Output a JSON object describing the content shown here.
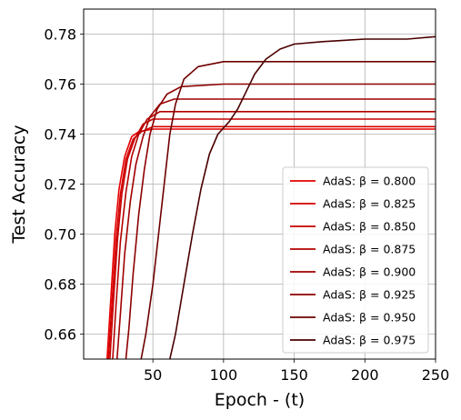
{
  "chart_data": {
    "type": "line",
    "xlabel": "Epoch - (t)",
    "ylabel": "Test Accuracy",
    "xlim": [
      1,
      250
    ],
    "ylim": [
      0.65,
      0.79
    ],
    "x_ticks": [
      50,
      100,
      150,
      200,
      250
    ],
    "y_ticks": [
      0.66,
      0.68,
      0.7,
      0.72,
      0.74,
      0.76,
      0.78
    ],
    "x_tick_labels": [
      "50",
      "100",
      "150",
      "200",
      "250"
    ],
    "y_tick_labels": [
      "0.66",
      "0.68",
      "0.70",
      "0.72",
      "0.74",
      "0.76",
      "0.78"
    ],
    "grid": true,
    "legend_position": "lower-right",
    "series": [
      {
        "name": "AdaS: β = 0.800",
        "color": "#e60000",
        "points": [
          [
            17,
            0.645
          ],
          [
            20,
            0.672
          ],
          [
            23,
            0.7
          ],
          [
            26,
            0.718
          ],
          [
            30,
            0.731
          ],
          [
            35,
            0.739
          ],
          [
            40,
            0.741
          ],
          [
            50,
            0.742
          ],
          [
            75,
            0.742
          ],
          [
            100,
            0.742
          ],
          [
            150,
            0.742
          ],
          [
            200,
            0.742
          ],
          [
            250,
            0.742
          ]
        ]
      },
      {
        "name": "AdaS: β = 0.825",
        "color": "#d40000",
        "points": [
          [
            18,
            0.645
          ],
          [
            21,
            0.672
          ],
          [
            24,
            0.698
          ],
          [
            27,
            0.716
          ],
          [
            31,
            0.73
          ],
          [
            36,
            0.738
          ],
          [
            42,
            0.741
          ],
          [
            50,
            0.743
          ],
          [
            75,
            0.743
          ],
          [
            100,
            0.743
          ],
          [
            150,
            0.743
          ],
          [
            200,
            0.743
          ],
          [
            250,
            0.743
          ]
        ]
      },
      {
        "name": "AdaS: β = 0.850",
        "color": "#c80000",
        "points": [
          [
            19,
            0.645
          ],
          [
            22,
            0.672
          ],
          [
            25,
            0.698
          ],
          [
            28,
            0.716
          ],
          [
            32,
            0.73
          ],
          [
            37,
            0.738
          ],
          [
            43,
            0.744
          ],
          [
            50,
            0.746
          ],
          [
            75,
            0.746
          ],
          [
            100,
            0.746
          ],
          [
            150,
            0.746
          ],
          [
            200,
            0.746
          ],
          [
            250,
            0.746
          ]
        ]
      },
      {
        "name": "AdaS: β = 0.875",
        "color": "#b40000",
        "points": [
          [
            21,
            0.645
          ],
          [
            24,
            0.672
          ],
          [
            27,
            0.697
          ],
          [
            31,
            0.717
          ],
          [
            35,
            0.731
          ],
          [
            40,
            0.74
          ],
          [
            46,
            0.746
          ],
          [
            55,
            0.749
          ],
          [
            75,
            0.749
          ],
          [
            100,
            0.749
          ],
          [
            150,
            0.749
          ],
          [
            200,
            0.749
          ],
          [
            250,
            0.749
          ]
        ]
      },
      {
        "name": "AdaS: β = 0.900",
        "color": "#a00000",
        "points": [
          [
            24,
            0.645
          ],
          [
            27,
            0.668
          ],
          [
            30,
            0.692
          ],
          [
            34,
            0.713
          ],
          [
            38,
            0.728
          ],
          [
            43,
            0.739
          ],
          [
            48,
            0.747
          ],
          [
            55,
            0.752
          ],
          [
            65,
            0.754
          ],
          [
            100,
            0.754
          ],
          [
            150,
            0.754
          ],
          [
            200,
            0.754
          ],
          [
            250,
            0.754
          ]
        ]
      },
      {
        "name": "AdaS: β = 0.925",
        "color": "#8c0000",
        "points": [
          [
            30,
            0.645
          ],
          [
            33,
            0.662
          ],
          [
            36,
            0.684
          ],
          [
            40,
            0.708
          ],
          [
            44,
            0.726
          ],
          [
            48,
            0.74
          ],
          [
            53,
            0.75
          ],
          [
            60,
            0.756
          ],
          [
            70,
            0.759
          ],
          [
            100,
            0.76
          ],
          [
            150,
            0.76
          ],
          [
            200,
            0.76
          ],
          [
            250,
            0.76
          ]
        ]
      },
      {
        "name": "AdaS: β = 0.950",
        "color": "#6e0000",
        "points": [
          [
            40,
            0.645
          ],
          [
            45,
            0.66
          ],
          [
            50,
            0.68
          ],
          [
            54,
            0.7
          ],
          [
            58,
            0.72
          ],
          [
            62,
            0.74
          ],
          [
            66,
            0.752
          ],
          [
            72,
            0.762
          ],
          [
            82,
            0.767
          ],
          [
            100,
            0.769
          ],
          [
            150,
            0.769
          ],
          [
            200,
            0.769
          ],
          [
            250,
            0.769
          ]
        ]
      },
      {
        "name": "AdaS: β = 0.975",
        "color": "#4a0000",
        "points": [
          [
            60,
            0.645
          ],
          [
            66,
            0.66
          ],
          [
            72,
            0.68
          ],
          [
            78,
            0.7
          ],
          [
            84,
            0.718
          ],
          [
            90,
            0.732
          ],
          [
            96,
            0.74
          ],
          [
            104,
            0.745
          ],
          [
            110,
            0.75
          ],
          [
            116,
            0.757
          ],
          [
            122,
            0.764
          ],
          [
            130,
            0.77
          ],
          [
            140,
            0.774
          ],
          [
            150,
            0.776
          ],
          [
            170,
            0.777
          ],
          [
            200,
            0.778
          ],
          [
            230,
            0.778
          ],
          [
            250,
            0.779
          ]
        ]
      }
    ]
  }
}
